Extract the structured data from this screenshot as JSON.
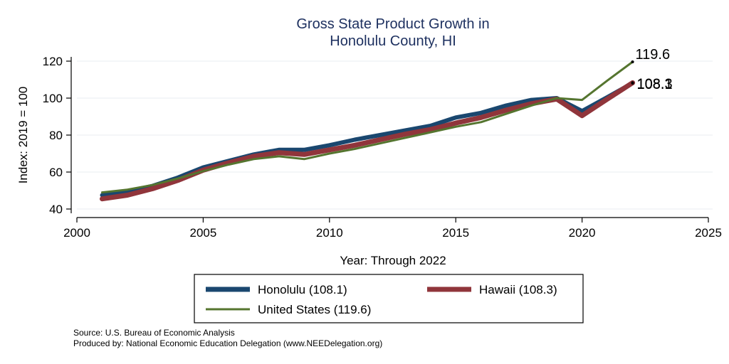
{
  "chart_data": {
    "type": "line",
    "title": [
      "Gross State Product Growth in",
      "Honolulu County, HI"
    ],
    "xlabel": "Year: Through 2022",
    "ylabel": "Index: 2019 = 100",
    "xlim": [
      2000,
      2025
    ],
    "ylim": [
      40,
      120
    ],
    "x_ticks": [
      2000,
      2005,
      2010,
      2015,
      2020,
      2025
    ],
    "y_ticks": [
      40,
      60,
      80,
      100,
      120
    ],
    "grid": true,
    "legend_position": "bottom",
    "x": [
      2001,
      2002,
      2003,
      2004,
      2005,
      2006,
      2007,
      2008,
      2009,
      2010,
      2011,
      2012,
      2013,
      2014,
      2015,
      2016,
      2017,
      2018,
      2019,
      2020,
      2021,
      2022
    ],
    "series": [
      {
        "name": "Honolulu",
        "legend_label": "Honolulu  (108.1)",
        "color": "#1a476f",
        "end_label": "108.1",
        "values": [
          47.5,
          49.5,
          52.5,
          57,
          62.5,
          66,
          69.5,
          72,
          72,
          74.5,
          77.5,
          80,
          82.5,
          85,
          89.5,
          92,
          96,
          99,
          100,
          93,
          100.5,
          108.1
        ]
      },
      {
        "name": "Hawaii",
        "legend_label": "Hawaii (108.3)",
        "color": "#90353b",
        "end_label": "108.3",
        "values": [
          45.5,
          47.5,
          51,
          55.5,
          61,
          65,
          68.5,
          70.5,
          69.5,
          72,
          74.5,
          77.5,
          80.5,
          83,
          86.5,
          89.5,
          93.5,
          97,
          99.5,
          90.5,
          99.5,
          108.3
        ]
      },
      {
        "name": "United States",
        "legend_label": "United States (119.6)",
        "color": "#55752f",
        "end_label": "119.6",
        "values": [
          49,
          50.5,
          53,
          56.5,
          60.5,
          64,
          67,
          68.5,
          67,
          70,
          72.5,
          75.5,
          78.5,
          81.5,
          84.5,
          87,
          91.5,
          96,
          100,
          99,
          109.5,
          119.6
        ]
      }
    ]
  },
  "footer": {
    "source": "Source: U.S. Bureau of Economic Analysis",
    "produced_by": "Produced by: National Economic Education Delegation (www.NEEDelegation.org)"
  }
}
